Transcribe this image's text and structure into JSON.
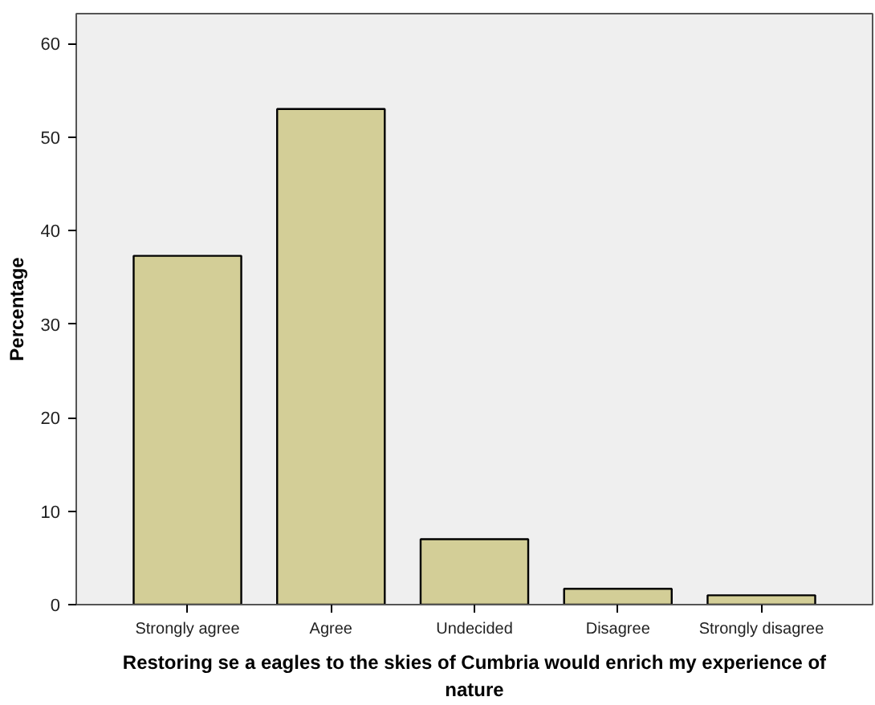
{
  "chart_data": {
    "type": "bar",
    "xlabel": "Restoring se a eagles to the skies of Cumbria would enrich my experience of nature",
    "ylabel": "Percentage",
    "categories": [
      "Strongly agree",
      "Agree",
      "Undecided",
      "Disagree",
      "Strongly disagree"
    ],
    "values": [
      37.3,
      53,
      7,
      1.7,
      1
    ],
    "color": "#d3ce97",
    "ylim": [
      0,
      63.2
    ],
    "yticks": [
      0,
      10,
      20,
      30,
      40,
      50,
      60
    ],
    "grid": false
  }
}
